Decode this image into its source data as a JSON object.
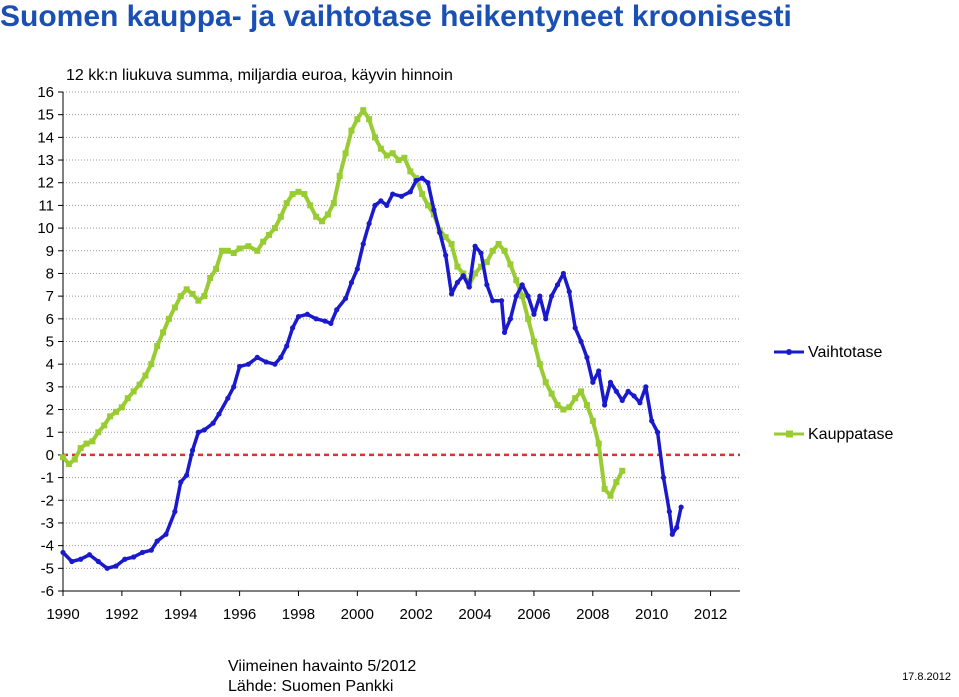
{
  "title": "Suomen kauppa- ja vaihtotase heikentyneet kroonisesti",
  "footer": {
    "last_obs": "Viimeinen havainto 5/2012",
    "source": "Lähde: Suomen Pankki",
    "date": "17.8.2012"
  },
  "colors": {
    "vaihtotase": "#1a1acc",
    "kauppatase": "#99cc33",
    "zero_line": "#e03030",
    "grid": "#999999"
  },
  "chart_data": {
    "type": "line",
    "subtitle": "12 kk:n liukuva summa, miljardia euroa, käyvin hinnoin",
    "xlim": [
      1990,
      2013
    ],
    "ylim": [
      -6,
      16
    ],
    "yticks": [
      -6,
      -5,
      -4,
      -3,
      -2,
      -1,
      0,
      1,
      2,
      3,
      4,
      5,
      6,
      7,
      8,
      9,
      10,
      11,
      12,
      13,
      14,
      15,
      16
    ],
    "xticks": [
      1990,
      1992,
      1994,
      1996,
      1998,
      2000,
      2002,
      2004,
      2006,
      2008,
      2010,
      2012
    ],
    "ytick_labels": [
      "-6",
      "-5",
      "-4",
      "-3",
      "-2",
      "-1",
      "0",
      "1",
      "2",
      "3",
      "4",
      "5",
      "6",
      "7",
      "8",
      "9",
      "10",
      "11",
      "12",
      "13",
      "14",
      "15",
      "16"
    ],
    "xtick_labels": [
      "1990",
      "1992",
      "1994",
      "1996",
      "1998",
      "2000",
      "2002",
      "2004",
      "2006",
      "2008",
      "2010",
      "2012"
    ],
    "legend_position": "right",
    "series": [
      {
        "name": "Vaihtotase",
        "points": [
          [
            1990.0,
            -4.3
          ],
          [
            1990.3,
            -4.7
          ],
          [
            1990.6,
            -4.6
          ],
          [
            1990.9,
            -4.4
          ],
          [
            1991.2,
            -4.7
          ],
          [
            1991.5,
            -5.0
          ],
          [
            1991.8,
            -4.9
          ],
          [
            1992.1,
            -4.6
          ],
          [
            1992.4,
            -4.5
          ],
          [
            1992.7,
            -4.3
          ],
          [
            1993.0,
            -4.2
          ],
          [
            1993.2,
            -3.8
          ],
          [
            1993.5,
            -3.5
          ],
          [
            1993.8,
            -2.5
          ],
          [
            1994.0,
            -1.2
          ],
          [
            1994.2,
            -0.9
          ],
          [
            1994.4,
            0.2
          ],
          [
            1994.6,
            1.0
          ],
          [
            1994.8,
            1.1
          ],
          [
            1995.1,
            1.4
          ],
          [
            1995.3,
            1.8
          ],
          [
            1995.6,
            2.5
          ],
          [
            1995.8,
            3.0
          ],
          [
            1996.0,
            3.9
          ],
          [
            1996.3,
            4.0
          ],
          [
            1996.6,
            4.3
          ],
          [
            1996.9,
            4.1
          ],
          [
            1997.2,
            4.0
          ],
          [
            1997.4,
            4.3
          ],
          [
            1997.6,
            4.8
          ],
          [
            1997.8,
            5.6
          ],
          [
            1998.0,
            6.1
          ],
          [
            1998.3,
            6.2
          ],
          [
            1998.6,
            6.0
          ],
          [
            1998.9,
            5.9
          ],
          [
            1999.1,
            5.8
          ],
          [
            1999.3,
            6.4
          ],
          [
            1999.6,
            6.9
          ],
          [
            1999.8,
            7.6
          ],
          [
            2000.0,
            8.2
          ],
          [
            2000.2,
            9.3
          ],
          [
            2000.4,
            10.2
          ],
          [
            2000.6,
            11.0
          ],
          [
            2000.8,
            11.2
          ],
          [
            2001.0,
            11.0
          ],
          [
            2001.2,
            11.5
          ],
          [
            2001.5,
            11.4
          ],
          [
            2001.8,
            11.6
          ],
          [
            2002.0,
            12.1
          ],
          [
            2002.2,
            12.2
          ],
          [
            2002.4,
            12.0
          ],
          [
            2002.6,
            10.8
          ],
          [
            2002.8,
            9.8
          ],
          [
            2003.0,
            8.8
          ],
          [
            2003.2,
            7.1
          ],
          [
            2003.4,
            7.6
          ],
          [
            2003.6,
            7.9
          ],
          [
            2003.8,
            7.4
          ],
          [
            2004.0,
            9.2
          ],
          [
            2004.2,
            8.9
          ],
          [
            2004.4,
            7.5
          ],
          [
            2004.6,
            6.8
          ],
          [
            2004.9,
            6.8
          ],
          [
            2005.0,
            5.4
          ],
          [
            2005.2,
            6.0
          ],
          [
            2005.4,
            7.0
          ],
          [
            2005.6,
            7.5
          ],
          [
            2005.8,
            7.0
          ],
          [
            2006.0,
            6.2
          ],
          [
            2006.2,
            7.0
          ],
          [
            2006.4,
            6.0
          ],
          [
            2006.6,
            7.0
          ],
          [
            2006.8,
            7.5
          ],
          [
            2007.0,
            8.0
          ],
          [
            2007.2,
            7.2
          ],
          [
            2007.4,
            5.6
          ],
          [
            2007.6,
            5.0
          ],
          [
            2007.8,
            4.3
          ],
          [
            2008.0,
            3.2
          ],
          [
            2008.2,
            3.7
          ],
          [
            2008.4,
            2.2
          ],
          [
            2008.6,
            3.2
          ],
          [
            2008.8,
            2.8
          ],
          [
            2009.0,
            2.4
          ],
          [
            2009.2,
            2.8
          ],
          [
            2009.4,
            2.6
          ],
          [
            2009.6,
            2.3
          ],
          [
            2009.8,
            3.0
          ],
          [
            2010.0,
            1.5
          ],
          [
            2010.2,
            1.0
          ],
          [
            2010.4,
            -1.0
          ],
          [
            2010.6,
            -2.5
          ],
          [
            2010.7,
            -3.5
          ],
          [
            2010.85,
            -3.2
          ],
          [
            2011.0,
            -2.3
          ]
        ]
      },
      {
        "name": "Kauppatase",
        "points": [
          [
            1990.0,
            -0.1
          ],
          [
            1990.2,
            -0.4
          ],
          [
            1990.4,
            -0.2
          ],
          [
            1990.6,
            0.3
          ],
          [
            1990.8,
            0.5
          ],
          [
            1991.0,
            0.6
          ],
          [
            1991.2,
            1.0
          ],
          [
            1991.4,
            1.3
          ],
          [
            1991.6,
            1.7
          ],
          [
            1991.8,
            1.9
          ],
          [
            1992.0,
            2.1
          ],
          [
            1992.2,
            2.5
          ],
          [
            1992.4,
            2.8
          ],
          [
            1992.6,
            3.1
          ],
          [
            1992.8,
            3.5
          ],
          [
            1993.0,
            4.0
          ],
          [
            1993.2,
            4.8
          ],
          [
            1993.4,
            5.4
          ],
          [
            1993.6,
            6.0
          ],
          [
            1993.8,
            6.5
          ],
          [
            1994.0,
            7.0
          ],
          [
            1994.2,
            7.3
          ],
          [
            1994.4,
            7.1
          ],
          [
            1994.6,
            6.8
          ],
          [
            1994.8,
            7.0
          ],
          [
            1995.0,
            7.8
          ],
          [
            1995.2,
            8.2
          ],
          [
            1995.4,
            9.0
          ],
          [
            1995.6,
            9.0
          ],
          [
            1995.8,
            8.9
          ],
          [
            1996.0,
            9.1
          ],
          [
            1996.3,
            9.2
          ],
          [
            1996.6,
            9.0
          ],
          [
            1996.8,
            9.4
          ],
          [
            1997.0,
            9.7
          ],
          [
            1997.2,
            10.0
          ],
          [
            1997.4,
            10.5
          ],
          [
            1997.6,
            11.1
          ],
          [
            1997.8,
            11.5
          ],
          [
            1998.0,
            11.6
          ],
          [
            1998.2,
            11.5
          ],
          [
            1998.4,
            11.0
          ],
          [
            1998.6,
            10.5
          ],
          [
            1998.8,
            10.3
          ],
          [
            1999.0,
            10.6
          ],
          [
            1999.2,
            11.1
          ],
          [
            1999.4,
            12.3
          ],
          [
            1999.6,
            13.3
          ],
          [
            1999.8,
            14.3
          ],
          [
            2000.0,
            14.8
          ],
          [
            2000.2,
            15.2
          ],
          [
            2000.4,
            14.8
          ],
          [
            2000.6,
            14.0
          ],
          [
            2000.8,
            13.5
          ],
          [
            2001.0,
            13.2
          ],
          [
            2001.2,
            13.3
          ],
          [
            2001.4,
            13.0
          ],
          [
            2001.6,
            13.1
          ],
          [
            2001.8,
            12.5
          ],
          [
            2002.0,
            12.2
          ],
          [
            2002.2,
            11.5
          ],
          [
            2002.4,
            11.0
          ],
          [
            2002.6,
            10.6
          ],
          [
            2002.8,
            9.9
          ],
          [
            2003.0,
            9.6
          ],
          [
            2003.2,
            9.3
          ],
          [
            2003.4,
            8.3
          ],
          [
            2003.6,
            8.0
          ],
          [
            2003.8,
            7.5
          ],
          [
            2004.0,
            8.0
          ],
          [
            2004.2,
            8.3
          ],
          [
            2004.4,
            8.5
          ],
          [
            2004.6,
            9.0
          ],
          [
            2004.8,
            9.3
          ],
          [
            2005.0,
            9.0
          ],
          [
            2005.2,
            8.4
          ],
          [
            2005.4,
            7.7
          ],
          [
            2005.6,
            7.0
          ],
          [
            2005.8,
            6.0
          ],
          [
            2006.0,
            5.0
          ],
          [
            2006.2,
            4.0
          ],
          [
            2006.4,
            3.2
          ],
          [
            2006.6,
            2.7
          ],
          [
            2006.8,
            2.2
          ],
          [
            2007.0,
            2.0
          ],
          [
            2007.2,
            2.1
          ],
          [
            2007.4,
            2.5
          ],
          [
            2007.6,
            2.8
          ],
          [
            2007.8,
            2.2
          ],
          [
            2008.0,
            1.5
          ],
          [
            2008.2,
            0.5
          ],
          [
            2008.4,
            -1.5
          ],
          [
            2008.6,
            -1.8
          ],
          [
            2008.8,
            -1.2
          ],
          [
            2009.0,
            -0.7
          ]
        ]
      }
    ]
  }
}
